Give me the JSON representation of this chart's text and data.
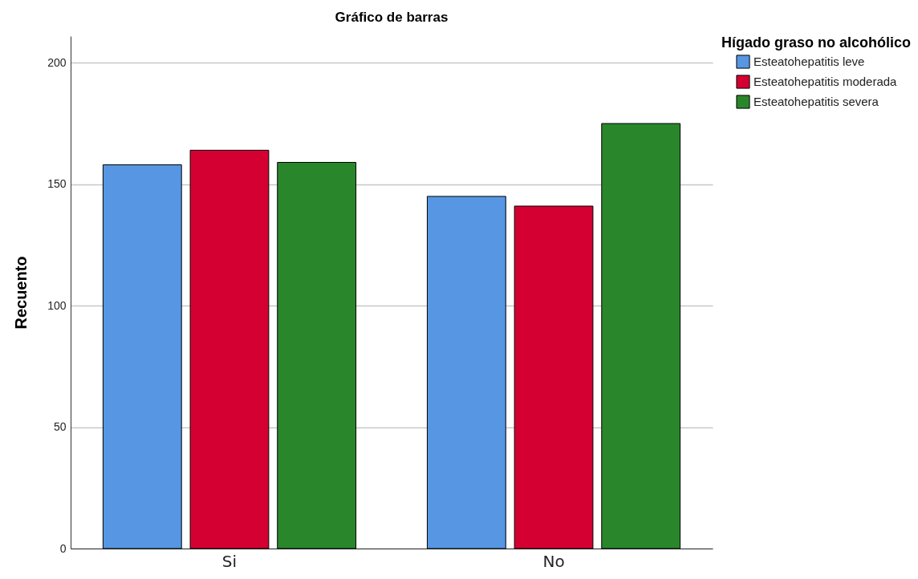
{
  "chart_data": {
    "type": "bar",
    "title": "Gráfico de barras",
    "ylabel": "Recuento",
    "legend_title": "Hígado graso  no alcohólico",
    "categories": [
      "Si",
      "No"
    ],
    "series": [
      {
        "name": "Esteatohepatitis leve",
        "color": "#5696e3",
        "values": [
          158,
          145
        ]
      },
      {
        "name": "Esteatohepatitis moderada",
        "color": "#d50032",
        "values": [
          164,
          141
        ]
      },
      {
        "name": "Esteatohepatitis severa",
        "color": "#2a862a",
        "values": [
          159,
          175
        ]
      }
    ],
    "ylim": [
      0,
      211
    ],
    "yticks": [
      0,
      50,
      100,
      150,
      200
    ],
    "grid": "y",
    "legend": "top right"
  }
}
